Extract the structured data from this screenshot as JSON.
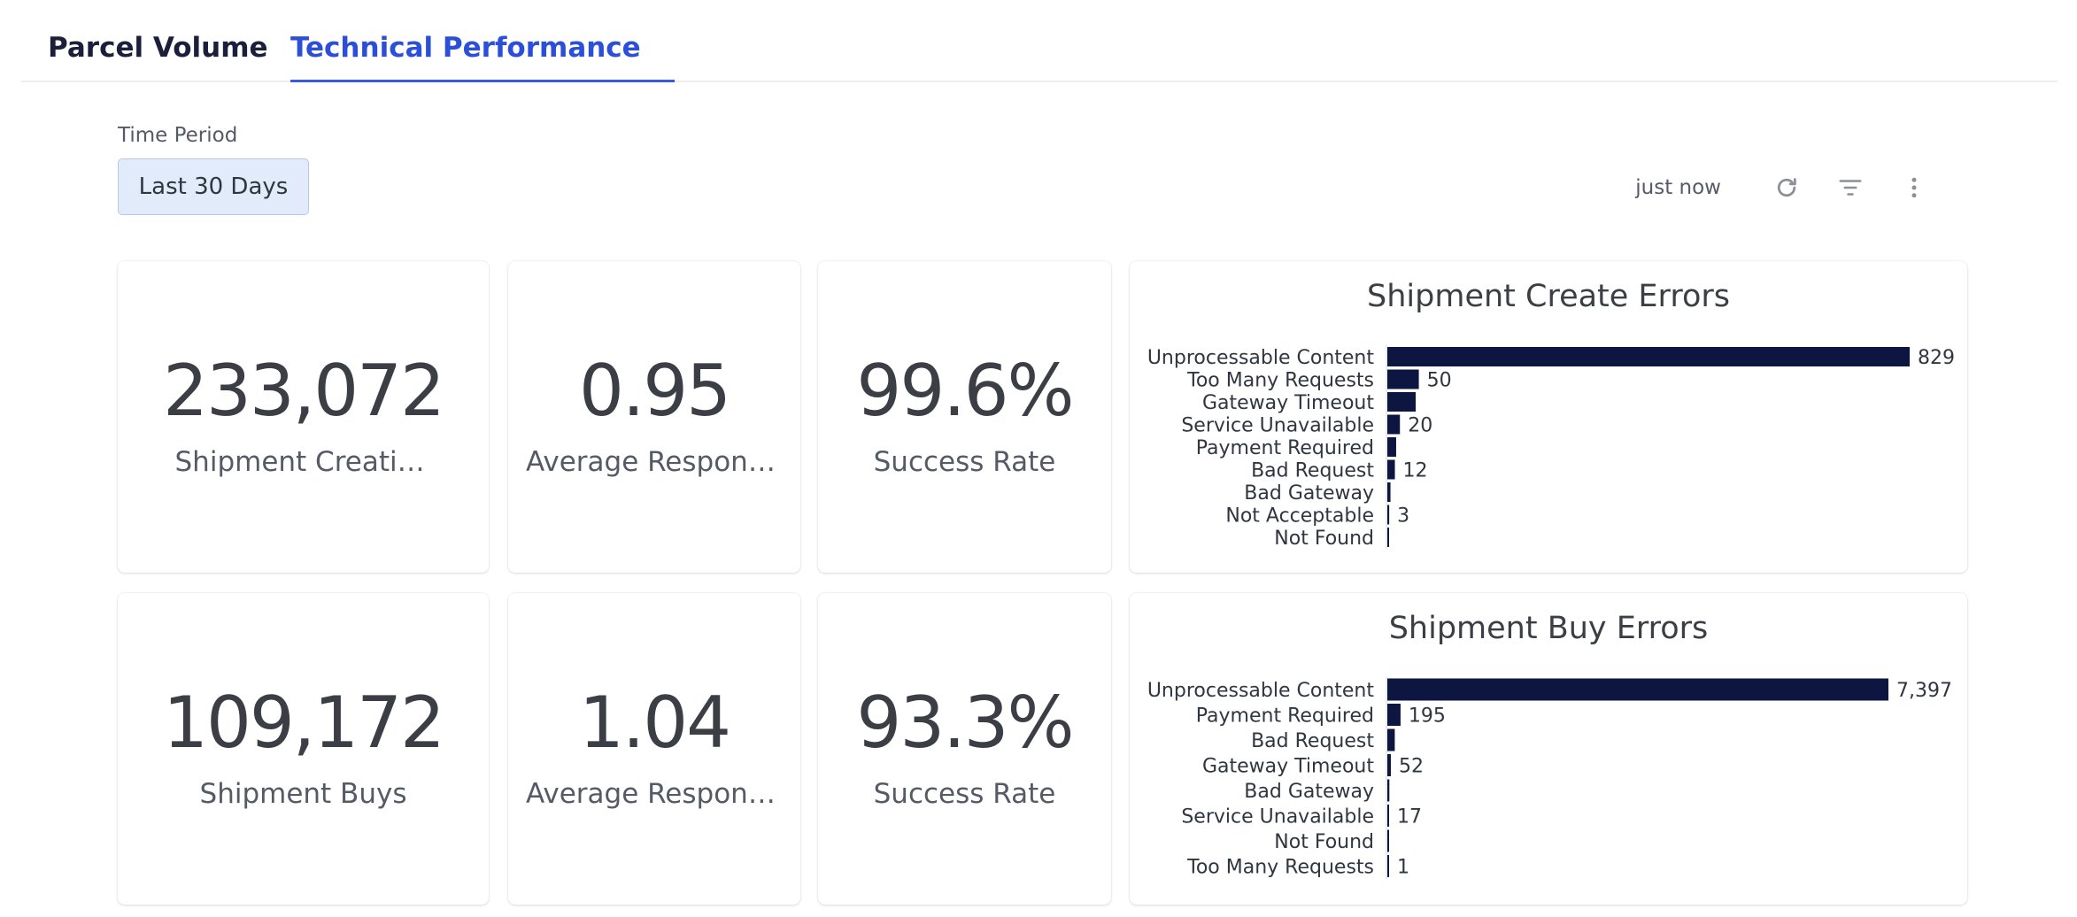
{
  "tabs": [
    {
      "label": "Parcel Volume",
      "active": false
    },
    {
      "label": "Technical Performance",
      "active": true
    }
  ],
  "filters": {
    "time_period_label": "Time Period",
    "time_period_value": "Last 30 Days"
  },
  "toolbar": {
    "updated": "just now",
    "icons": [
      "refresh-icon",
      "filter-icon",
      "more-vertical-icon"
    ]
  },
  "kpis": {
    "shipment_creations": {
      "value": "233,072",
      "label": "Shipment Creations"
    },
    "create_response": {
      "value": "0.95",
      "label": "Average Response..."
    },
    "create_success": {
      "value": "99.6%",
      "label": "Success Rate"
    },
    "shipment_buys": {
      "value": "109,172",
      "label": "Shipment Buys"
    },
    "buy_response": {
      "value": "1.04",
      "label": "Average Response..."
    },
    "buy_success": {
      "value": "93.3%",
      "label": "Success Rate"
    }
  },
  "colors": {
    "bar": "#0d1640",
    "accent": "#2b4fd8"
  },
  "chart_data": [
    {
      "type": "bar",
      "orientation": "horizontal",
      "title": "Shipment Create Errors",
      "categories": [
        "Unprocessable Content",
        "Too Many Requests",
        "Gateway Timeout",
        "Service Unavailable",
        "Payment Required",
        "Bad Request",
        "Bad Gateway",
        "Not Acceptable",
        "Not Found"
      ],
      "values": [
        829,
        50,
        45,
        20,
        14,
        12,
        5,
        3,
        2
      ],
      "data_labels": [
        "829",
        "50",
        "",
        "20",
        "",
        "12",
        "",
        "3",
        ""
      ],
      "xlim": [
        0,
        829
      ]
    },
    {
      "type": "bar",
      "orientation": "horizontal",
      "title": "Shipment Buy Errors",
      "categories": [
        "Unprocessable Content",
        "Payment Required",
        "Bad Request",
        "Gateway Timeout",
        "Bad Gateway",
        "Service Unavailable",
        "Not Found",
        "Too Many Requests"
      ],
      "values": [
        7397,
        195,
        110,
        52,
        30,
        17,
        5,
        1
      ],
      "data_labels": [
        "7,397",
        "195",
        "",
        "52",
        "",
        "17",
        "",
        "1"
      ],
      "xlim": [
        0,
        7397
      ]
    }
  ]
}
